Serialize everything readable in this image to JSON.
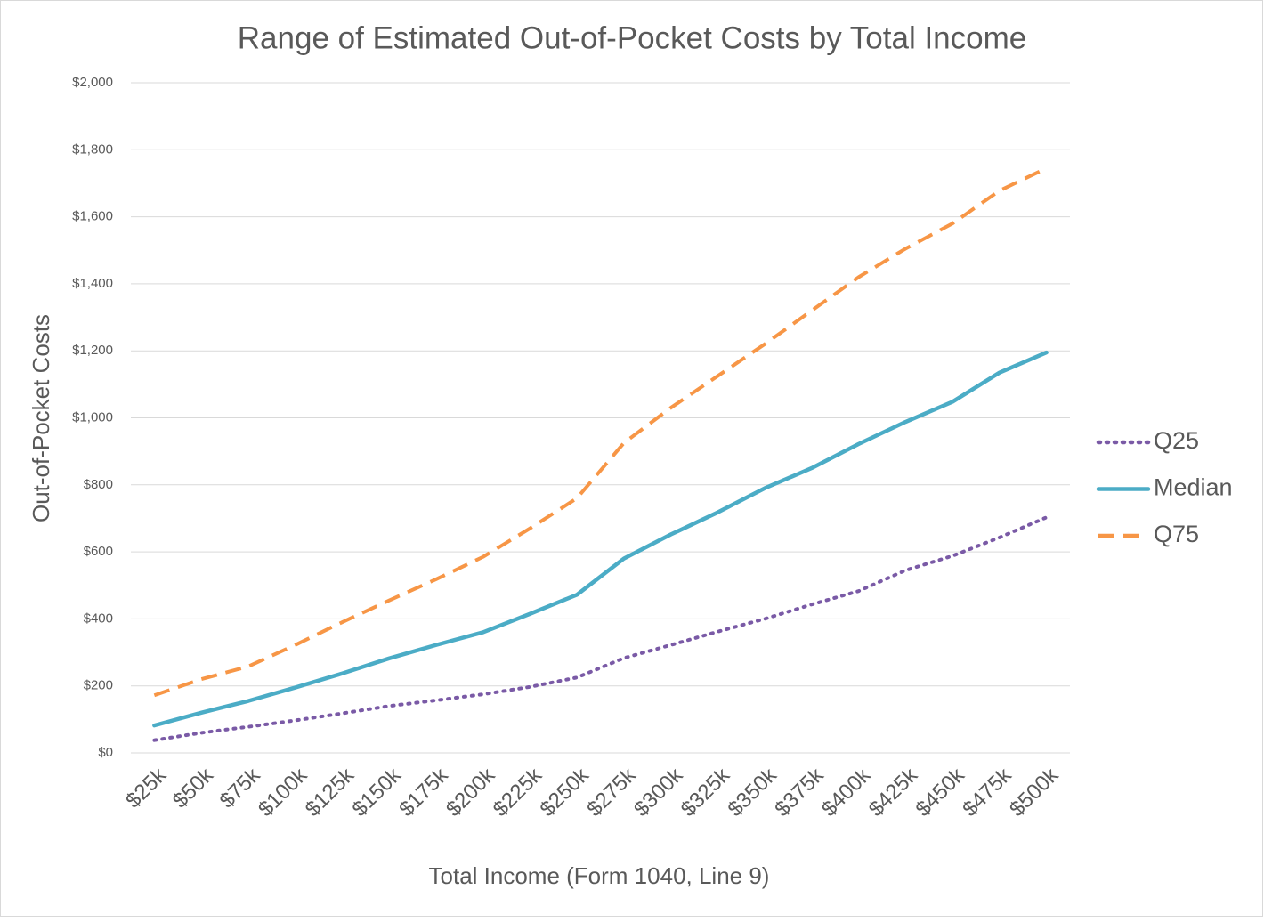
{
  "chart_data": {
    "type": "line",
    "title": "Range of Estimated Out-of-Pocket Costs by Total Income",
    "x_label": "Total Income (Form 1040, Line 9)",
    "y_label": "Out-of-Pocket Costs",
    "categories": [
      "$25k",
      "$50k",
      "$75k",
      "$100k",
      "$125k",
      "$150k",
      "$175k",
      "$200k",
      "$225k",
      "$250k",
      "$275k",
      "$300k",
      "$325k",
      "$350k",
      "$375k",
      "$400k",
      "$425k",
      "$450k",
      "$475k",
      "$500k"
    ],
    "series": [
      {
        "name": "Q25",
        "color": "#7a5aa6",
        "style": "dotted",
        "values": [
          38,
          60,
          78,
          97,
          118,
          140,
          157,
          175,
          197,
          225,
          283,
          322,
          362,
          400,
          443,
          483,
          545,
          588,
          643,
          703
        ]
      },
      {
        "name": "Median",
        "color": "#4bacc6",
        "style": "solid",
        "values": [
          82,
          120,
          155,
          195,
          237,
          282,
          322,
          360,
          415,
          472,
          580,
          652,
          718,
          790,
          850,
          922,
          988,
          1048,
          1135,
          1195
        ]
      },
      {
        "name": "Q75",
        "color": "#f79646",
        "style": "dashed",
        "values": [
          172,
          220,
          258,
          322,
          390,
          455,
          518,
          585,
          670,
          760,
          925,
          1030,
          1125,
          1220,
          1320,
          1420,
          1505,
          1580,
          1678,
          1745
        ]
      }
    ],
    "ylim": [
      0,
      2000
    ],
    "yticks": [
      {
        "value": 0,
        "label": "$0"
      },
      {
        "value": 200,
        "label": "$200"
      },
      {
        "value": 400,
        "label": "$400"
      },
      {
        "value": 600,
        "label": "$600"
      },
      {
        "value": 800,
        "label": "$800"
      },
      {
        "value": 1000,
        "label": "$1,000"
      },
      {
        "value": 1200,
        "label": "$1,200"
      },
      {
        "value": 1400,
        "label": "$1,400"
      },
      {
        "value": 1600,
        "label": "$1,600"
      },
      {
        "value": 1800,
        "label": "$1,800"
      },
      {
        "value": 2000,
        "label": "$2,000"
      }
    ],
    "grid": true,
    "legend": "right"
  }
}
